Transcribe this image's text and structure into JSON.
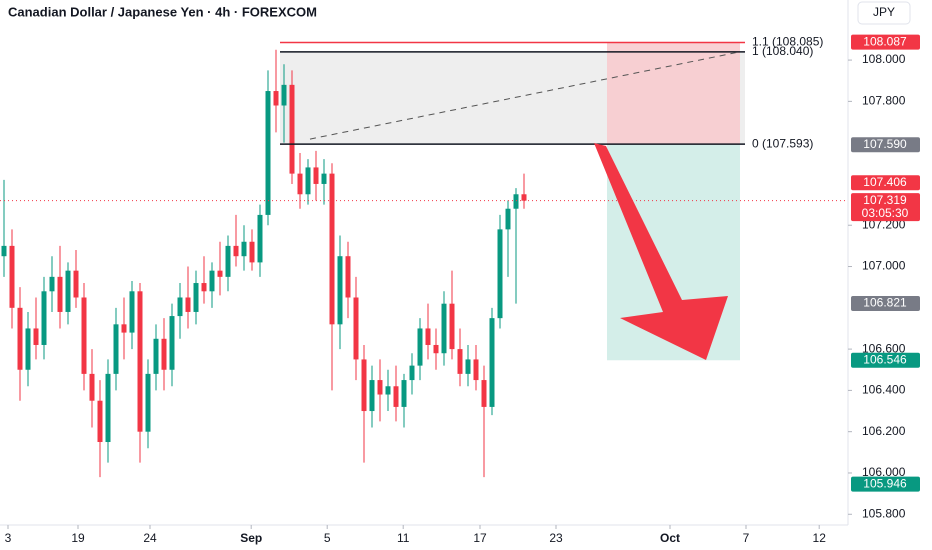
{
  "chart_data": {
    "type": "candlestick",
    "title": "Canadian Dollar / Japanese Yen · 4h · FOREXCOM",
    "currency": "JPY",
    "up_color": "#089981",
    "down_color": "#f23645",
    "ohlc": [
      [
        107.05,
        107.42,
        106.95,
        107.1
      ],
      [
        107.1,
        107.18,
        106.7,
        106.8
      ],
      [
        106.8,
        106.9,
        106.35,
        106.5
      ],
      [
        106.5,
        106.78,
        106.42,
        106.7
      ],
      [
        106.7,
        106.85,
        106.55,
        106.62
      ],
      [
        106.62,
        106.95,
        106.55,
        106.88
      ],
      [
        106.88,
        107.05,
        106.78,
        106.95
      ],
      [
        106.95,
        107.1,
        106.7,
        106.78
      ],
      [
        106.78,
        107.02,
        106.72,
        106.98
      ],
      [
        106.98,
        107.08,
        106.8,
        106.85
      ],
      [
        106.85,
        106.92,
        106.4,
        106.48
      ],
      [
        106.48,
        106.6,
        106.22,
        106.35
      ],
      [
        106.35,
        106.45,
        105.98,
        106.15
      ],
      [
        106.15,
        106.55,
        106.05,
        106.48
      ],
      [
        106.48,
        106.8,
        106.4,
        106.72
      ],
      [
        106.72,
        106.85,
        106.55,
        106.68
      ],
      [
        106.68,
        106.93,
        106.6,
        106.88
      ],
      [
        106.88,
        106.92,
        106.05,
        106.2
      ],
      [
        106.2,
        106.55,
        106.12,
        106.48
      ],
      [
        106.48,
        106.72,
        106.4,
        106.65
      ],
      [
        106.65,
        106.75,
        106.4,
        106.5
      ],
      [
        106.5,
        106.82,
        106.42,
        106.76
      ],
      [
        106.76,
        106.92,
        106.65,
        106.85
      ],
      [
        106.85,
        107.0,
        106.7,
        106.78
      ],
      [
        106.78,
        106.98,
        106.72,
        106.92
      ],
      [
        106.92,
        107.05,
        106.82,
        106.88
      ],
      [
        106.88,
        107.02,
        106.8,
        106.98
      ],
      [
        106.98,
        107.12,
        106.86,
        106.95
      ],
      [
        106.95,
        107.15,
        106.88,
        107.1
      ],
      [
        107.1,
        107.25,
        107.0,
        107.05
      ],
      [
        107.05,
        107.2,
        106.98,
        107.12
      ],
      [
        107.12,
        107.18,
        106.98,
        107.02
      ],
      [
        107.02,
        107.3,
        106.95,
        107.25
      ],
      [
        107.25,
        107.95,
        107.2,
        107.85
      ],
      [
        107.85,
        108.05,
        107.65,
        107.78
      ],
      [
        107.78,
        107.98,
        107.6,
        107.88
      ],
      [
        107.88,
        107.95,
        107.4,
        107.45
      ],
      [
        107.45,
        107.55,
        107.28,
        107.35
      ],
      [
        107.35,
        107.52,
        107.3,
        107.48
      ],
      [
        107.48,
        107.56,
        107.32,
        107.4
      ],
      [
        107.4,
        107.52,
        107.3,
        107.45
      ],
      [
        107.45,
        107.5,
        106.4,
        106.72
      ],
      [
        106.72,
        107.15,
        106.6,
        107.05
      ],
      [
        107.05,
        107.12,
        106.75,
        106.85
      ],
      [
        106.85,
        106.95,
        106.45,
        106.55
      ],
      [
        106.55,
        106.62,
        106.05,
        106.3
      ],
      [
        106.3,
        106.52,
        106.22,
        106.45
      ],
      [
        106.45,
        106.55,
        106.25,
        106.38
      ],
      [
        106.38,
        106.5,
        106.3,
        106.42
      ],
      [
        106.42,
        106.52,
        106.25,
        106.32
      ],
      [
        106.32,
        106.48,
        106.22,
        106.45
      ],
      [
        106.45,
        106.58,
        106.38,
        106.52
      ],
      [
        106.52,
        106.75,
        106.45,
        106.7
      ],
      [
        106.7,
        106.82,
        106.55,
        106.62
      ],
      [
        106.62,
        106.7,
        106.5,
        106.58
      ],
      [
        106.58,
        106.88,
        106.52,
        106.82
      ],
      [
        106.82,
        106.98,
        106.55,
        106.6
      ],
      [
        106.6,
        106.7,
        106.42,
        106.48
      ],
      [
        106.48,
        106.62,
        106.42,
        106.55
      ],
      [
        106.55,
        106.62,
        106.4,
        106.45
      ],
      [
        106.45,
        106.52,
        105.98,
        106.32
      ],
      [
        106.32,
        106.8,
        106.28,
        106.75
      ],
      [
        106.75,
        107.25,
        106.7,
        107.18
      ],
      [
        107.18,
        107.32,
        106.95,
        107.28
      ],
      [
        107.28,
        107.38,
        106.82,
        107.35
      ],
      [
        107.35,
        107.45,
        107.28,
        107.319
      ]
    ],
    "xlim": [
      -0.5,
      105.5
    ],
    "xticks": [
      {
        "value": 0.5,
        "label": "3"
      },
      {
        "value": 9.25,
        "label": "19"
      },
      {
        "value": 18.25,
        "label": "24"
      },
      {
        "value": 30.9,
        "label": "Sep"
      },
      {
        "value": 40.4,
        "label": "5"
      },
      {
        "value": 49.9,
        "label": "11"
      },
      {
        "value": 59.5,
        "label": "17"
      },
      {
        "value": 69,
        "label": "23"
      },
      {
        "value": 83.25,
        "label": "Oct"
      },
      {
        "value": 92.75,
        "label": "7"
      },
      {
        "value": 101.9,
        "label": "12"
      }
    ],
    "ylim": [
      105.748,
      108.291
    ],
    "yticks": [
      {
        "value": 105.8,
        "label": "105.800"
      },
      {
        "value": 106,
        "label": "106.000"
      },
      {
        "value": 106.2,
        "label": "106.200"
      },
      {
        "value": 106.4,
        "label": "106.400"
      },
      {
        "value": 106.6,
        "label": "106.600"
      },
      {
        "value": 107,
        "label": "107.000"
      },
      {
        "value": 107.2,
        "label": "107.200"
      },
      {
        "value": 107.8,
        "label": "107.800"
      },
      {
        "value": 108,
        "label": "108.000"
      }
    ],
    "fib_levels": [
      {
        "value": 108.085,
        "label": "1.1 (108.085)",
        "color": "#f23645"
      },
      {
        "value": 108.04,
        "label": "1 (108.040)",
        "color": "#131722"
      },
      {
        "value": 107.593,
        "label": "0 (107.593)",
        "color": "#131722"
      }
    ],
    "zones": [
      {
        "from": 107.59,
        "to": 108.087,
        "color": "#f8c9cd"
      },
      {
        "from": 106.546,
        "to": 107.59,
        "color": "#cdebe5"
      }
    ],
    "price_labels": [
      {
        "value": 108.087,
        "label": "108.087",
        "color": "#f23645"
      },
      {
        "value": 107.59,
        "label": "107.590",
        "color": "#787b86"
      },
      {
        "value": 107.406,
        "label": "107.406",
        "color": "#f23645"
      },
      {
        "value": 107.319,
        "label": "107.319",
        "color": "#f23645",
        "countdown": "03:05:30"
      },
      {
        "value": 106.821,
        "label": "106.821",
        "color": "#787b86"
      },
      {
        "value": 106.546,
        "label": "106.546",
        "color": "#089981"
      },
      {
        "value": 105.946,
        "label": "105.946",
        "color": "#089981"
      }
    ]
  }
}
